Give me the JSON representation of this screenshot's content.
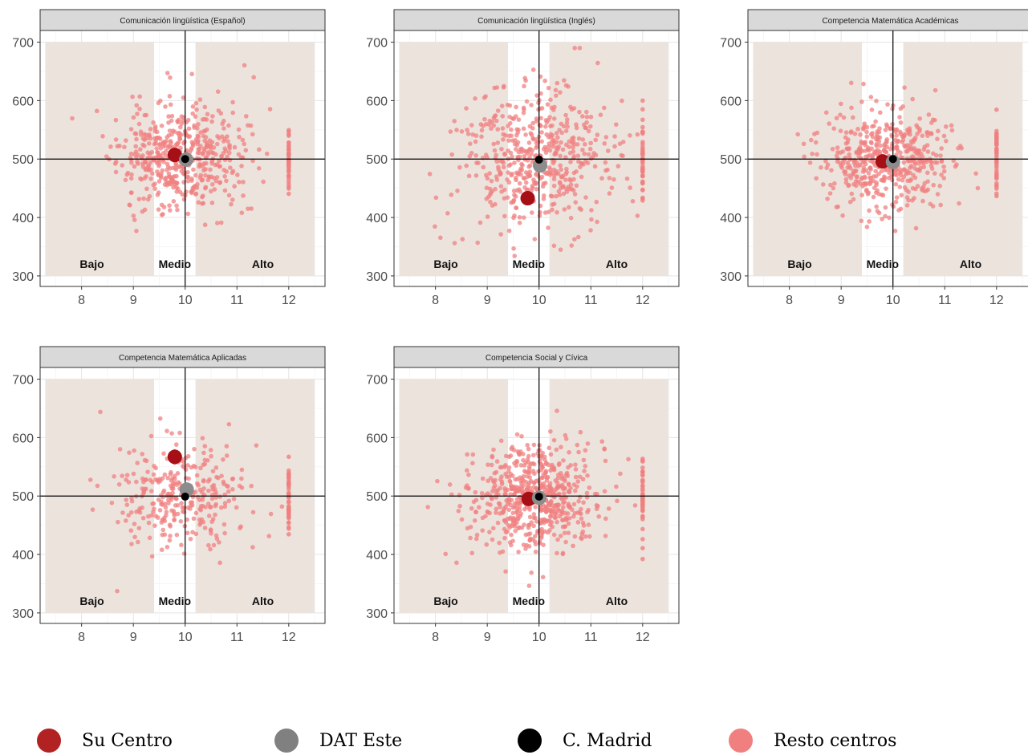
{
  "chart_data": {
    "type": "scatter",
    "legend_placement": "bottom",
    "zone_labels": [
      "Bajo",
      "Medio",
      "Alto"
    ],
    "zones": [
      [
        7.3,
        9.4
      ],
      [
        10.2,
        12.5
      ]
    ],
    "xlim": [
      7.2,
      12.7
    ],
    "ylim": [
      282,
      720
    ],
    "xticks": [
      8,
      9,
      10,
      11,
      12
    ],
    "yticks": [
      300,
      400,
      500,
      600,
      700
    ],
    "ref_lines": {
      "x": 10,
      "y": 500
    },
    "series_styles": {
      "su_centro": "#a50f15",
      "dat_este": "#8c8c8c",
      "madrid": "#000000",
      "resto": "#f08080"
    },
    "panels": [
      {
        "title": "Comunicación lingüística (Español)",
        "su_centro": [
          9.8,
          507
        ],
        "dat_este": [
          10.02,
          499
        ],
        "madrid": [
          10.0,
          500
        ],
        "resto_center": [
          9.9,
          505
        ],
        "resto_spread": [
          0.6,
          45
        ],
        "resto_n": 520,
        "seed": 11
      },
      {
        "title": "Comunicación lingüística (Inglés)",
        "su_centro": [
          9.78,
          433
        ],
        "dat_este": [
          10.02,
          489
        ],
        "madrid": [
          10.0,
          499
        ],
        "resto_center": [
          9.9,
          500
        ],
        "resto_spread": [
          0.7,
          60
        ],
        "resto_n": 520,
        "seed": 23
      },
      {
        "title": "Competencia Matemática Académicas",
        "su_centro": [
          9.8,
          496
        ],
        "dat_este": [
          10.0,
          495
        ],
        "madrid": [
          10.0,
          500
        ],
        "resto_center": [
          9.9,
          500
        ],
        "resto_spread": [
          0.6,
          42
        ],
        "resto_n": 520,
        "seed": 37
      },
      {
        "title": "Competencia Matemática Aplicadas",
        "su_centro": [
          9.8,
          567
        ],
        "dat_este": [
          10.03,
          511
        ],
        "madrid": [
          10.0,
          499
        ],
        "resto_center": [
          9.9,
          505
        ],
        "resto_spread": [
          0.6,
          50
        ],
        "resto_n": 320,
        "seed": 41
      },
      {
        "title": "Competencia Social y Cívica",
        "su_centro": [
          9.8,
          495
        ],
        "dat_este": [
          10.0,
          497
        ],
        "madrid": [
          10.0,
          499
        ],
        "resto_center": [
          9.9,
          500
        ],
        "resto_spread": [
          0.6,
          45
        ],
        "resto_n": 620,
        "seed": 53
      }
    ]
  },
  "legend": [
    {
      "label": "Su Centro",
      "color": "#b22222"
    },
    {
      "label": "DAT Este",
      "color": "#808080"
    },
    {
      "label": "C. Madrid",
      "color": "#000000"
    },
    {
      "label": "Resto centros",
      "color": "#f08080"
    }
  ]
}
